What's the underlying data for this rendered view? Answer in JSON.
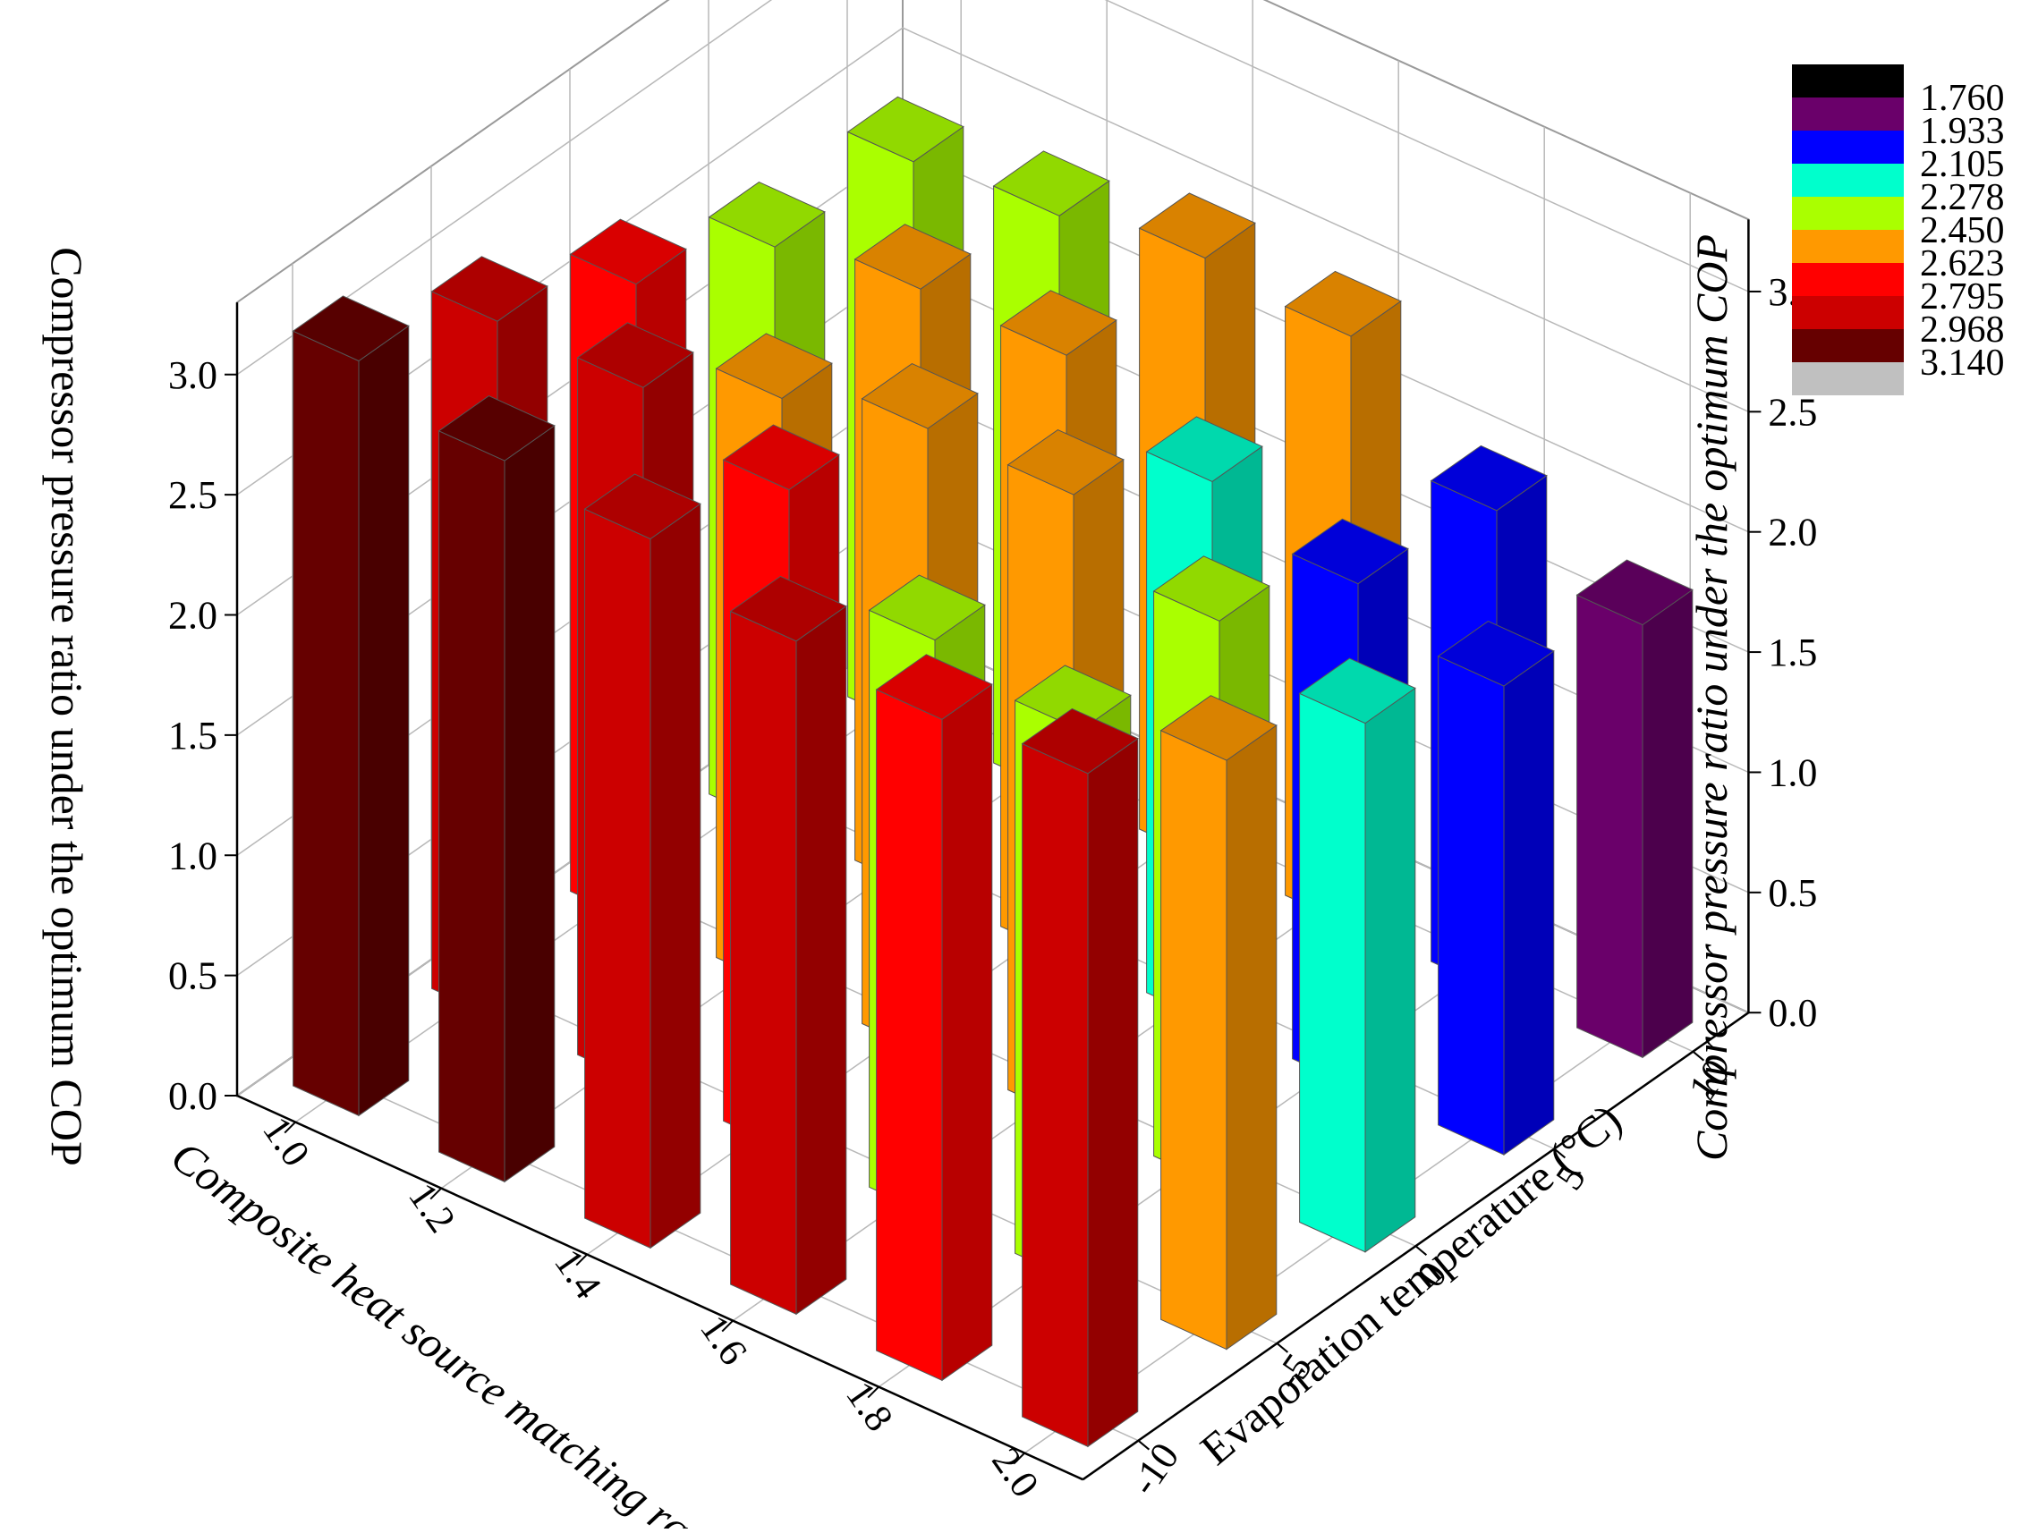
{
  "chart_data": {
    "type": "bar3d",
    "x_axis": {
      "label": "Composite heat source matching ratio",
      "ticks": [
        "1.0",
        "1.2",
        "1.4",
        "1.6",
        "1.8",
        "2.0"
      ]
    },
    "y_axis": {
      "label": "Evaporation temperature (°C)",
      "ticks": [
        "-10",
        "-5",
        "0",
        "5",
        "10"
      ]
    },
    "z_axis": {
      "label": "Compressor pressure ratio under the optimum COP",
      "ticks": [
        "0.0",
        "0.5",
        "1.0",
        "1.5",
        "2.0",
        "2.5",
        "3.0"
      ],
      "range": [
        0,
        3.2
      ]
    },
    "colormap": {
      "levels": [
        "1.760",
        "1.933",
        "2.105",
        "2.278",
        "2.450",
        "2.623",
        "2.795",
        "2.968",
        "3.140"
      ],
      "colors": [
        "#000000",
        "#6a006a",
        "#0000ff",
        "#00ffcc",
        "#aaff00",
        "#ff9900",
        "#ff0000",
        "#cc0000",
        "#660000",
        "#c0c0c0"
      ]
    },
    "ratios": [
      1.0,
      1.2,
      1.4,
      1.6,
      1.8,
      2.0
    ],
    "temperatures": [
      -10,
      -5,
      0,
      5,
      10
    ],
    "bars": [
      {
        "ratio": 1.0,
        "temp": -10,
        "value": 3.14
      },
      {
        "ratio": 1.2,
        "temp": -10,
        "value": 3.0
      },
      {
        "ratio": 1.4,
        "temp": -10,
        "value": 2.95
      },
      {
        "ratio": 1.6,
        "temp": -10,
        "value": 2.8
      },
      {
        "ratio": 1.8,
        "temp": -10,
        "value": 2.75
      },
      {
        "ratio": 2.0,
        "temp": -10,
        "value": 2.8
      },
      {
        "ratio": 1.2,
        "temp": -5,
        "value": 2.9
      },
      {
        "ratio": 1.4,
        "temp": -5,
        "value": 2.75
      },
      {
        "ratio": 1.6,
        "temp": -5,
        "value": 2.4
      },
      {
        "ratio": 1.8,
        "temp": -5,
        "value": 2.3
      },
      {
        "ratio": 2.0,
        "temp": -5,
        "value": 2.45
      },
      {
        "ratio": 1.4,
        "temp": 0,
        "value": 2.6
      },
      {
        "ratio": 1.6,
        "temp": 0,
        "value": 2.6
      },
      {
        "ratio": 1.8,
        "temp": 0,
        "value": 2.35
      },
      {
        "ratio": 2.0,
        "temp": 0,
        "value": 2.2
      },
      {
        "ratio": 1.6,
        "temp": 5,
        "value": 2.25
      },
      {
        "ratio": 1.8,
        "temp": 5,
        "value": 2.1
      },
      {
        "ratio": 2.0,
        "temp": 5,
        "value": 1.95
      },
      {
        "ratio": 1.8,
        "temp": 10,
        "value": 2.0
      },
      {
        "ratio": 2.0,
        "temp": 10,
        "value": 1.8
      },
      {
        "ratio": 1.6,
        "temp": 10,
        "value": 2.45
      },
      {
        "ratio": 1.4,
        "temp": 10,
        "value": 2.5
      },
      {
        "ratio": 1.4,
        "temp": 5,
        "value": 2.5
      },
      {
        "ratio": 1.2,
        "temp": 5,
        "value": 2.5
      },
      {
        "ratio": 1.2,
        "temp": 0,
        "value": 2.45
      },
      {
        "ratio": 1.0,
        "temp": 0,
        "value": 2.65
      },
      {
        "ratio": 1.0,
        "temp": 5,
        "value": 2.4
      },
      {
        "ratio": 1.0,
        "temp": -5,
        "value": 2.9
      },
      {
        "ratio": 1.2,
        "temp": 10,
        "value": 2.4
      },
      {
        "ratio": 1.0,
        "temp": 10,
        "value": 2.35
      }
    ],
    "grid": true,
    "legend_position": "top-right"
  }
}
